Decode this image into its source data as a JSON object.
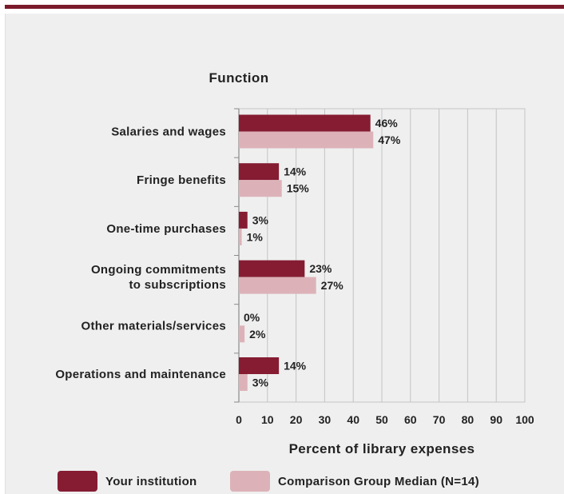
{
  "colors": {
    "your_institution": "#851c32",
    "comparison_median": "#dcb2b8",
    "top_rule": "#7a1a2b",
    "grid": "#c4c4c4",
    "panel_bg": "#efefef"
  },
  "chart_data": {
    "type": "bar",
    "orientation": "horizontal",
    "title": "",
    "ylabel": "Function",
    "xlabel": "Percent of library expenses",
    "xlim": [
      0,
      100
    ],
    "x_ticks": [
      "0",
      "10",
      "20",
      "30",
      "40",
      "50",
      "60",
      "70",
      "80",
      "90",
      "100"
    ],
    "grid": true,
    "legend_position": "bottom",
    "categories": [
      [
        "Salaries and wages"
      ],
      [
        "Fringe benefits"
      ],
      [
        "One-time purchases"
      ],
      [
        "Ongoing commitments",
        "to subscriptions"
      ],
      [
        "Other materials/services"
      ],
      [
        "Operations and maintenance"
      ]
    ],
    "series": [
      {
        "name": "Your institution",
        "color": "#851c32",
        "values": [
          46,
          14,
          3,
          23,
          0,
          14
        ],
        "labels": [
          "46%",
          "14%",
          "3%",
          "23%",
          "0%",
          "14%"
        ]
      },
      {
        "name": "Comparison Group Median (N=14)",
        "color": "#dcb2b8",
        "values": [
          47,
          15,
          1,
          27,
          2,
          3
        ],
        "labels": [
          "47%",
          "15%",
          "1%",
          "27%",
          "2%",
          "3%"
        ]
      }
    ]
  }
}
